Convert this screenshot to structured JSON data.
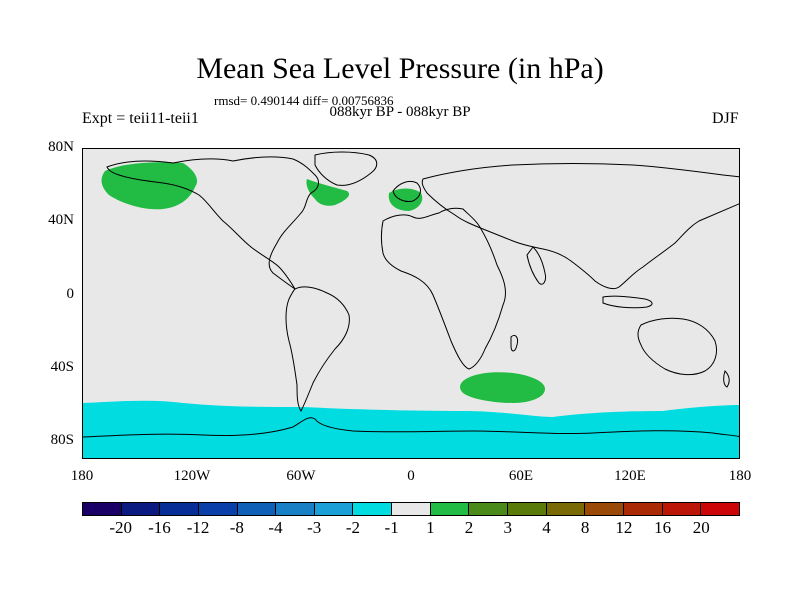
{
  "title": "Mean Sea Level Pressure (in hPa)",
  "stats": "rmsd= 0.490144 diff= 0.00756836",
  "period": "088kyr BP - 088kyr BP",
  "expt": "Expt = teii11-teii1",
  "season": "DJF",
  "map": {
    "background_color": "#e8e8e8",
    "coast_color": "#000000",
    "lat_labels": [
      "80N",
      "40N",
      "0",
      "40S",
      "80S"
    ],
    "lon_labels": [
      "180",
      "120W",
      "60W",
      "0",
      "60E",
      "120E",
      "180"
    ]
  },
  "colorbar": {
    "colors": [
      "#1a0066",
      "#0a1a80",
      "#062e96",
      "#083fa8",
      "#1060b8",
      "#1a80c6",
      "#1aa0d6",
      "#00dce0",
      "#e8e8e8",
      "#22bb44",
      "#4a8a1a",
      "#5a7a0a",
      "#7a6a06",
      "#9a4a06",
      "#aa2a06",
      "#bb1606",
      "#cc0606"
    ],
    "labels": [
      "-20",
      "-16",
      "-12",
      "-8",
      "-4",
      "-3",
      "-2",
      "-1",
      "1",
      "2",
      "3",
      "4",
      "8",
      "12",
      "16",
      "20"
    ]
  },
  "legend_colors": {
    "positive_1_2": "#22bb44",
    "negative_-1_-2": "#00dce0"
  }
}
